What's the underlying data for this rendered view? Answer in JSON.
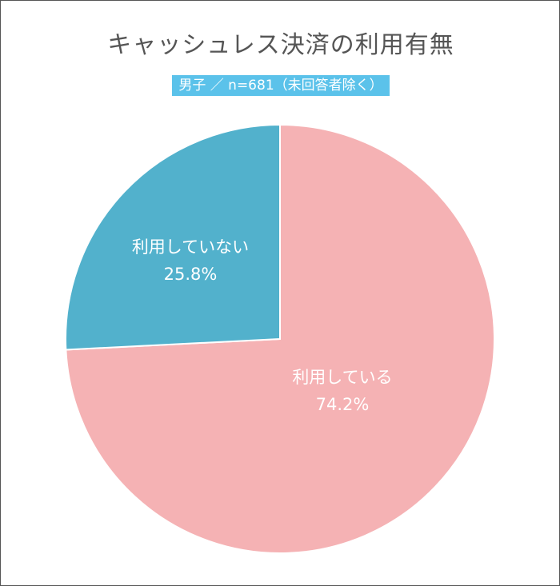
{
  "chart_data": {
    "type": "pie",
    "title": "キャッシュレス決済の利用有無",
    "subtitle": "男子 ／ n=681（未回答者除く）",
    "slices": [
      {
        "label": "利用している",
        "value": 74.2,
        "value_label": "74.2%",
        "color": "#f5b2b4"
      },
      {
        "label": "利用していない",
        "value": 25.8,
        "value_label": "25.8%",
        "color": "#52b1cc"
      }
    ]
  }
}
